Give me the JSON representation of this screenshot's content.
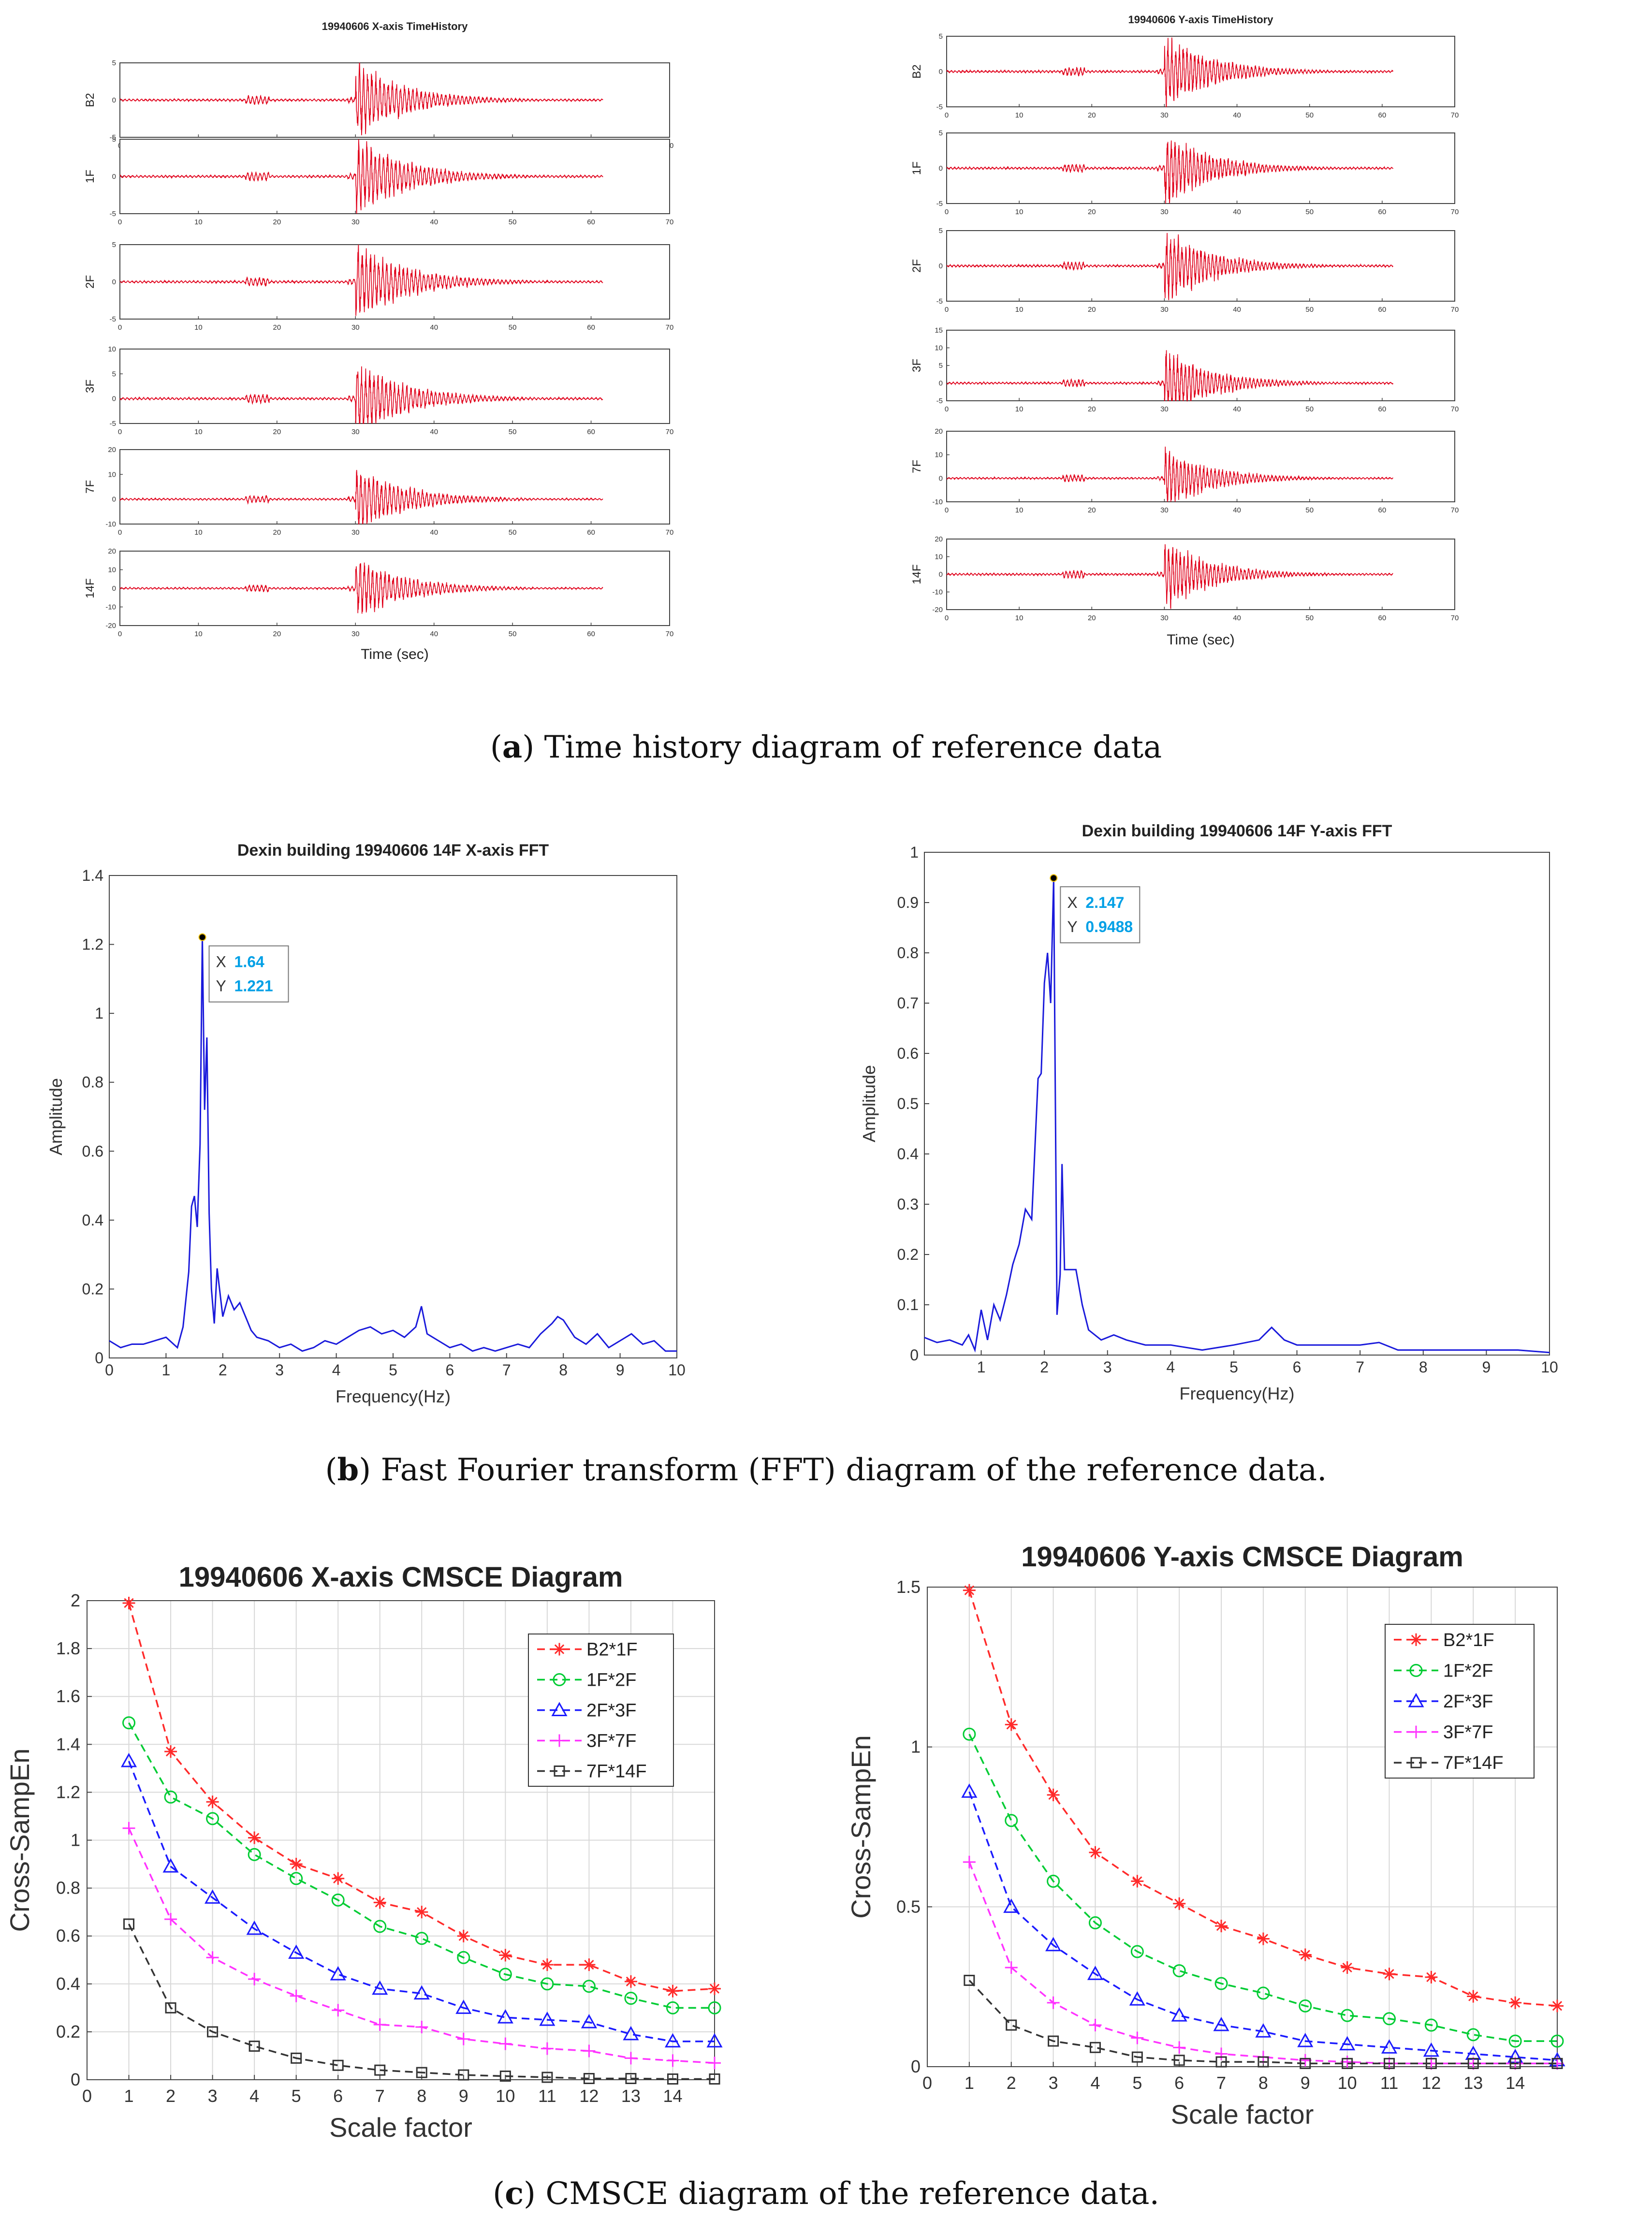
{
  "captions": {
    "a": {
      "letter": "a",
      "text": ") Time history diagram of reference data"
    },
    "b": {
      "letter": "b",
      "text": ") Fast Fourier transform (FFT) diagram of the reference data."
    },
    "c": {
      "letter": "c",
      "text": ") CMSCE diagram of the reference data."
    }
  },
  "colors": {
    "signal": "#e0001a",
    "fft": "#1a1adb",
    "tipText": "#00a0e6"
  },
  "chart_data": [
    {
      "id": "th_x",
      "type": "line",
      "title": "19940606 X-axis TimeHistory",
      "xlabel": "Time (sec)",
      "xlim": [
        0,
        70
      ],
      "xticks": [
        0,
        10,
        20,
        30,
        40,
        50,
        60,
        70
      ],
      "series": [
        {
          "name": "B2",
          "ylim": [
            -5,
            5
          ],
          "yticks": [
            -5,
            0,
            5
          ],
          "peak": 4.6
        },
        {
          "name": "1F",
          "ylim": [
            -5,
            5
          ],
          "yticks": [
            -5,
            0,
            5
          ],
          "peak": 4.8
        },
        {
          "name": "2F",
          "ylim": [
            -5,
            5
          ],
          "yticks": [
            -5,
            0,
            5
          ],
          "peak": 4.9
        },
        {
          "name": "3F",
          "ylim": [
            -5,
            10
          ],
          "yticks": [
            -5,
            0,
            5,
            10
          ],
          "peak": 7.0
        },
        {
          "name": "7F",
          "ylim": [
            -10,
            20
          ],
          "yticks": [
            -10,
            0,
            10,
            20
          ],
          "peak": 12.0
        },
        {
          "name": "14F",
          "ylim": [
            -20,
            20
          ],
          "yticks": [
            -20,
            -10,
            0,
            10,
            20
          ],
          "peak": 15.0
        }
      ]
    },
    {
      "id": "th_y",
      "type": "line",
      "title": "19940606 Y-axis TimeHistory",
      "xlabel": "Time (sec)",
      "xlim": [
        0,
        70
      ],
      "xticks": [
        0,
        10,
        20,
        30,
        40,
        50,
        60,
        70
      ],
      "series": [
        {
          "name": "B2",
          "ylim": [
            -5,
            5
          ],
          "yticks": [
            -5,
            0,
            5
          ],
          "peak": 4.8
        },
        {
          "name": "1F",
          "ylim": [
            -5,
            5
          ],
          "yticks": [
            -5,
            0,
            5
          ],
          "peak": 4.8
        },
        {
          "name": "2F",
          "ylim": [
            -5,
            5
          ],
          "yticks": [
            -5,
            0,
            5
          ],
          "peak": 4.8
        },
        {
          "name": "3F",
          "ylim": [
            -5,
            15
          ],
          "yticks": [
            -5,
            0,
            5,
            10,
            15
          ],
          "peak": 9.0
        },
        {
          "name": "7F",
          "ylim": [
            -10,
            20
          ],
          "yticks": [
            -10,
            0,
            10,
            20
          ],
          "peak": 12.0
        },
        {
          "name": "14F",
          "ylim": [
            -20,
            20
          ],
          "yticks": [
            -20,
            -10,
            0,
            10,
            20
          ],
          "peak": 18.0
        }
      ]
    },
    {
      "id": "fft_x",
      "type": "line",
      "title": "Dexin building 19940606 14F X-axis FFT",
      "xlabel": "Frequency(Hz)",
      "ylabel": "Amplitude",
      "xlim": [
        0,
        10
      ],
      "ylim": [
        0,
        1.4
      ],
      "xticks": [
        0,
        1,
        2,
        3,
        4,
        5,
        6,
        7,
        8,
        9,
        10
      ],
      "yticks": [
        0,
        0.2,
        0.4,
        0.6,
        0.8,
        1,
        1.2,
        1.4
      ],
      "x": [
        0,
        0.2,
        0.4,
        0.6,
        0.8,
        1.0,
        1.2,
        1.3,
        1.4,
        1.45,
        1.5,
        1.55,
        1.6,
        1.64,
        1.68,
        1.72,
        1.76,
        1.8,
        1.85,
        1.9,
        2.0,
        2.1,
        2.2,
        2.3,
        2.4,
        2.5,
        2.6,
        2.8,
        3.0,
        3.2,
        3.4,
        3.6,
        3.8,
        4.0,
        4.2,
        4.4,
        4.6,
        4.8,
        5.0,
        5.2,
        5.4,
        5.5,
        5.6,
        5.8,
        6.0,
        6.2,
        6.4,
        6.6,
        6.8,
        7.0,
        7.2,
        7.4,
        7.6,
        7.8,
        7.9,
        8.0,
        8.2,
        8.4,
        8.6,
        8.8,
        9.0,
        9.2,
        9.4,
        9.6,
        9.8,
        10.0
      ],
      "y": [
        0.05,
        0.03,
        0.04,
        0.04,
        0.05,
        0.06,
        0.03,
        0.09,
        0.25,
        0.44,
        0.47,
        0.38,
        0.62,
        1.221,
        0.72,
        0.93,
        0.42,
        0.2,
        0.1,
        0.26,
        0.12,
        0.18,
        0.14,
        0.16,
        0.12,
        0.08,
        0.06,
        0.05,
        0.03,
        0.04,
        0.02,
        0.03,
        0.05,
        0.04,
        0.06,
        0.08,
        0.09,
        0.07,
        0.08,
        0.06,
        0.09,
        0.15,
        0.07,
        0.05,
        0.03,
        0.04,
        0.02,
        0.03,
        0.02,
        0.03,
        0.04,
        0.03,
        0.07,
        0.1,
        0.12,
        0.11,
        0.06,
        0.04,
        0.07,
        0.03,
        0.05,
        0.07,
        0.04,
        0.05,
        0.02,
        0.02
      ],
      "annotation": {
        "x_label": "X",
        "x_value": "1.64",
        "y_label": "Y",
        "y_value": "1.221",
        "x": 1.64,
        "y": 1.221
      }
    },
    {
      "id": "fft_y",
      "type": "line",
      "title": "Dexin building 19940606 14F Y-axis FFT",
      "xlabel": "Frequency(Hz)",
      "ylabel": "Amplitude",
      "xlim": [
        0.1,
        10
      ],
      "ylim": [
        0,
        1
      ],
      "xticks": [
        1,
        2,
        3,
        4,
        5,
        6,
        7,
        8,
        9,
        10
      ],
      "yticks": [
        0,
        0.1,
        0.2,
        0.3,
        0.4,
        0.5,
        0.6,
        0.7,
        0.8,
        0.9,
        1
      ],
      "x": [
        0.1,
        0.3,
        0.5,
        0.7,
        0.8,
        0.9,
        1.0,
        1.1,
        1.2,
        1.3,
        1.4,
        1.5,
        1.6,
        1.7,
        1.8,
        1.9,
        1.95,
        2.0,
        2.05,
        2.1,
        2.147,
        2.2,
        2.25,
        2.28,
        2.32,
        2.4,
        2.5,
        2.6,
        2.7,
        2.9,
        3.1,
        3.3,
        3.6,
        4.0,
        4.5,
        5.0,
        5.4,
        5.6,
        5.8,
        6.0,
        6.3,
        6.6,
        7.0,
        7.3,
        7.6,
        8.0,
        8.5,
        9.0,
        9.5,
        10.0
      ],
      "y": [
        0.035,
        0.025,
        0.03,
        0.02,
        0.04,
        0.01,
        0.09,
        0.03,
        0.1,
        0.07,
        0.12,
        0.18,
        0.22,
        0.29,
        0.27,
        0.55,
        0.56,
        0.74,
        0.8,
        0.7,
        0.9488,
        0.08,
        0.16,
        0.38,
        0.17,
        0.17,
        0.17,
        0.1,
        0.05,
        0.03,
        0.04,
        0.03,
        0.02,
        0.02,
        0.01,
        0.02,
        0.03,
        0.055,
        0.03,
        0.02,
        0.02,
        0.02,
        0.02,
        0.025,
        0.01,
        0.01,
        0.01,
        0.01,
        0.01,
        0.005
      ],
      "annotation": {
        "x_label": "X",
        "x_value": "2.147",
        "y_label": "Y",
        "y_value": "0.9488",
        "x": 2.147,
        "y": 0.9488
      }
    },
    {
      "id": "cmsce_x",
      "type": "line",
      "title": "19940606 X-axis CMSCE Diagram",
      "xlabel": "Scale factor",
      "ylabel": "Cross-SampEn",
      "xlim": [
        0,
        15
      ],
      "ylim": [
        0,
        2
      ],
      "xticks": [
        0,
        1,
        2,
        3,
        4,
        5,
        6,
        7,
        8,
        9,
        10,
        11,
        12,
        13,
        14
      ],
      "yticks": [
        0,
        0.2,
        0.4,
        0.6,
        0.8,
        1,
        1.2,
        1.4,
        1.6,
        1.8,
        2
      ],
      "x": [
        1,
        2,
        3,
        4,
        5,
        6,
        7,
        8,
        9,
        10,
        11,
        12,
        13,
        14,
        15
      ],
      "series": [
        {
          "name": "B2*1F",
          "color": "#ff2a2a",
          "marker": "star",
          "values": [
            1.99,
            1.37,
            1.16,
            1.01,
            0.9,
            0.84,
            0.74,
            0.7,
            0.6,
            0.52,
            0.48,
            0.48,
            0.41,
            0.37,
            0.38
          ]
        },
        {
          "name": "1F*2F",
          "color": "#00cc33",
          "marker": "circle",
          "values": [
            1.49,
            1.18,
            1.09,
            0.94,
            0.84,
            0.75,
            0.64,
            0.59,
            0.51,
            0.44,
            0.4,
            0.39,
            0.34,
            0.3,
            0.3
          ]
        },
        {
          "name": "2F*3F",
          "color": "#1a1aff",
          "marker": "triangle",
          "values": [
            1.33,
            0.89,
            0.76,
            0.63,
            0.53,
            0.44,
            0.38,
            0.36,
            0.3,
            0.26,
            0.25,
            0.24,
            0.19,
            0.16,
            0.16
          ]
        },
        {
          "name": "3F*7F",
          "color": "#ff33ff",
          "marker": "plus",
          "values": [
            1.05,
            0.67,
            0.51,
            0.42,
            0.35,
            0.29,
            0.23,
            0.22,
            0.17,
            0.15,
            0.13,
            0.12,
            0.09,
            0.08,
            0.07
          ]
        },
        {
          "name": "7F*14F",
          "color": "#333333",
          "marker": "square",
          "values": [
            0.65,
            0.3,
            0.2,
            0.14,
            0.09,
            0.06,
            0.04,
            0.03,
            0.02,
            0.015,
            0.01,
            0.005,
            0.005,
            0.003,
            0.003
          ]
        }
      ],
      "legend": "top-right"
    },
    {
      "id": "cmsce_y",
      "type": "line",
      "title": "19940606 Y-axis CMSCE Diagram",
      "xlabel": "Scale factor",
      "ylabel": "Cross-SampEn",
      "xlim": [
        0,
        15
      ],
      "ylim": [
        0,
        1.5
      ],
      "xticks": [
        0,
        1,
        2,
        3,
        4,
        5,
        6,
        7,
        8,
        9,
        10,
        11,
        12,
        13,
        14
      ],
      "yticks": [
        0,
        0.5,
        1,
        1.5
      ],
      "x": [
        1,
        2,
        3,
        4,
        5,
        6,
        7,
        8,
        9,
        10,
        11,
        12,
        13,
        14,
        15
      ],
      "series": [
        {
          "name": "B2*1F",
          "color": "#ff2a2a",
          "marker": "star",
          "values": [
            1.49,
            1.07,
            0.85,
            0.67,
            0.58,
            0.51,
            0.44,
            0.4,
            0.35,
            0.31,
            0.29,
            0.28,
            0.22,
            0.2,
            0.19
          ]
        },
        {
          "name": "1F*2F",
          "color": "#00cc33",
          "marker": "circle",
          "values": [
            1.04,
            0.77,
            0.58,
            0.45,
            0.36,
            0.3,
            0.26,
            0.23,
            0.19,
            0.16,
            0.15,
            0.13,
            0.1,
            0.08,
            0.08
          ]
        },
        {
          "name": "2F*3F",
          "color": "#1a1aff",
          "marker": "triangle",
          "values": [
            0.86,
            0.5,
            0.38,
            0.29,
            0.21,
            0.16,
            0.13,
            0.11,
            0.08,
            0.07,
            0.06,
            0.05,
            0.04,
            0.03,
            0.02
          ]
        },
        {
          "name": "3F*7F",
          "color": "#ff33ff",
          "marker": "plus",
          "values": [
            0.64,
            0.31,
            0.2,
            0.13,
            0.09,
            0.06,
            0.04,
            0.03,
            0.02,
            0.015,
            0.01,
            0.01,
            0.01,
            0.01,
            0.01
          ]
        },
        {
          "name": "7F*14F",
          "color": "#333333",
          "marker": "square",
          "values": [
            0.27,
            0.13,
            0.08,
            0.06,
            0.03,
            0.02,
            0.015,
            0.015,
            0.01,
            0.01,
            0.01,
            0.01,
            0.01,
            0.01,
            0.01
          ]
        }
      ],
      "legend": "top-right"
    }
  ]
}
